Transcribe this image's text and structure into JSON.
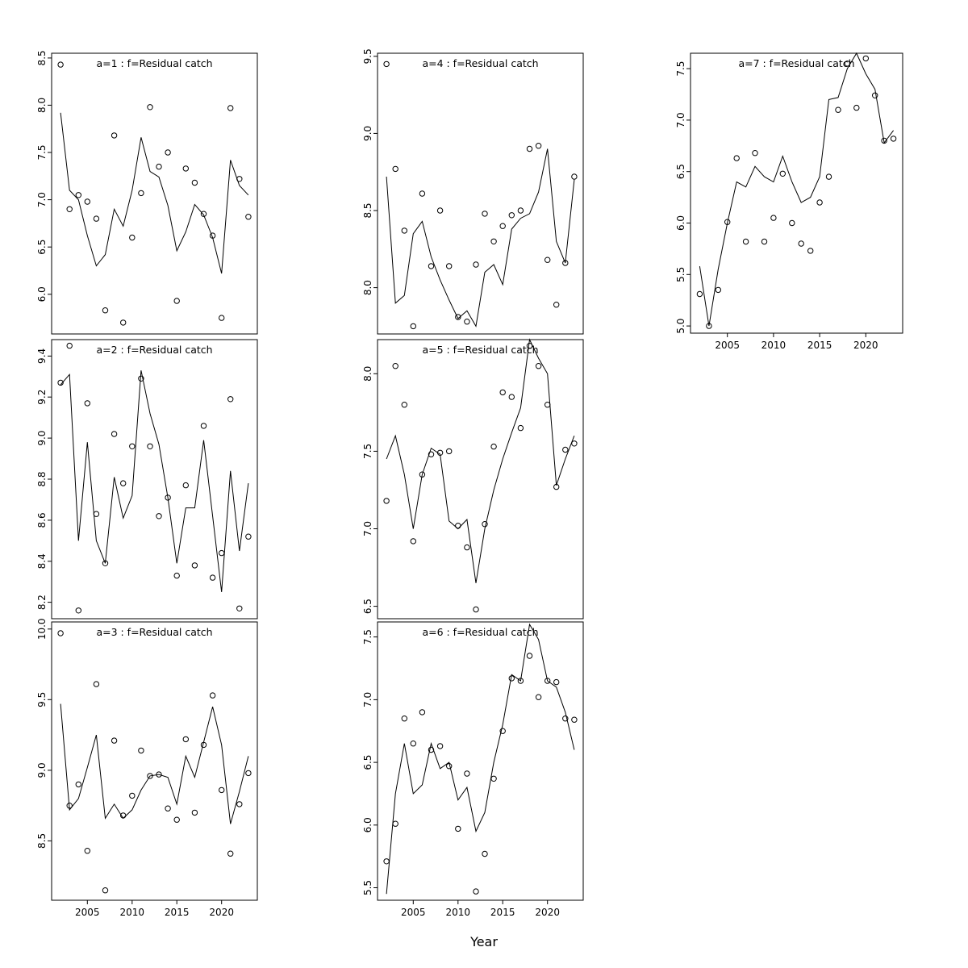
{
  "figure": {
    "xlabel": "Year",
    "background_color": "#ffffff",
    "line_color": "#000000",
    "point_color": "#000000",
    "frame_color": "#000000",
    "title_color": "#808080"
  },
  "chart_data": [
    {
      "type": "line",
      "title": "a=1 : f=Residual catch",
      "x": [
        2002,
        2003,
        2004,
        2005,
        2006,
        2007,
        2008,
        2009,
        2010,
        2011,
        2012,
        2013,
        2014,
        2015,
        2016,
        2017,
        2018,
        2019,
        2020,
        2021,
        2022,
        2023
      ],
      "series": [
        {
          "name": "observed",
          "style": "scatter",
          "values": [
            8.43,
            6.9,
            7.05,
            6.98,
            6.8,
            5.83,
            7.68,
            5.7,
            6.6,
            7.07,
            7.98,
            7.35,
            7.5,
            5.93,
            7.33,
            7.18,
            6.85,
            6.62,
            5.75,
            7.97,
            7.22,
            6.82
          ]
        },
        {
          "name": "fitted",
          "style": "line",
          "values": [
            7.92,
            7.1,
            7.0,
            6.62,
            6.3,
            6.42,
            6.9,
            6.72,
            7.1,
            7.66,
            7.3,
            7.24,
            6.94,
            6.46,
            6.66,
            6.95,
            6.84,
            6.6,
            6.22,
            7.42,
            7.15,
            7.05
          ]
        }
      ],
      "xlim": [
        2001,
        2024
      ],
      "ylim": [
        5.58,
        8.55
      ],
      "yticks": [
        6.0,
        6.5,
        7.0,
        7.5,
        8.0,
        8.5
      ],
      "xticks": [
        2005,
        2010,
        2015,
        2020
      ],
      "show_x_labels": false
    },
    {
      "type": "line",
      "title": "a=2 : f=Residual catch",
      "x": [
        2002,
        2003,
        2004,
        2005,
        2006,
        2007,
        2008,
        2009,
        2010,
        2011,
        2012,
        2013,
        2014,
        2015,
        2016,
        2017,
        2018,
        2019,
        2020,
        2021,
        2022,
        2023
      ],
      "series": [
        {
          "name": "observed",
          "style": "scatter",
          "values": [
            9.27,
            9.45,
            8.16,
            9.17,
            8.63,
            8.39,
            9.02,
            8.78,
            8.96,
            9.29,
            8.96,
            8.62,
            8.71,
            8.33,
            8.77,
            8.38,
            9.06,
            8.32,
            8.44,
            9.19,
            8.17,
            8.52
          ]
        },
        {
          "name": "fitted",
          "style": "line",
          "values": [
            9.26,
            9.31,
            8.5,
            8.98,
            8.5,
            8.39,
            8.81,
            8.61,
            8.72,
            9.33,
            9.12,
            8.97,
            8.71,
            8.39,
            8.66,
            8.66,
            8.99,
            8.62,
            8.25,
            8.84,
            8.45,
            8.78
          ]
        }
      ],
      "xlim": [
        2001,
        2024
      ],
      "ylim": [
        8.12,
        9.48
      ],
      "yticks": [
        8.2,
        8.4,
        8.6,
        8.8,
        9.0,
        9.2,
        9.4
      ],
      "xticks": [
        2005,
        2010,
        2015,
        2020
      ],
      "show_x_labels": false
    },
    {
      "type": "line",
      "title": "a=3 : f=Residual catch",
      "x": [
        2002,
        2003,
        2004,
        2005,
        2006,
        2007,
        2008,
        2009,
        2010,
        2011,
        2012,
        2013,
        2014,
        2015,
        2016,
        2017,
        2018,
        2019,
        2020,
        2021,
        2022,
        2023
      ],
      "series": [
        {
          "name": "observed",
          "style": "scatter",
          "values": [
            9.97,
            8.75,
            8.9,
            8.43,
            9.61,
            8.15,
            9.21,
            8.68,
            8.82,
            9.14,
            8.96,
            8.97,
            8.73,
            8.65,
            9.22,
            8.7,
            9.18,
            9.53,
            8.86,
            8.41,
            8.76,
            8.98
          ]
        },
        {
          "name": "fitted",
          "style": "line",
          "values": [
            9.47,
            8.72,
            8.8,
            9.02,
            9.25,
            8.66,
            8.76,
            8.66,
            8.72,
            8.86,
            8.96,
            8.97,
            8.95,
            8.76,
            9.1,
            8.95,
            9.2,
            9.45,
            9.18,
            8.62,
            8.85,
            9.1
          ]
        }
      ],
      "xlim": [
        2001,
        2024
      ],
      "ylim": [
        8.08,
        10.05
      ],
      "yticks": [
        8.5,
        9.0,
        9.5,
        10.0
      ],
      "xticks": [
        2005,
        2010,
        2015,
        2020
      ],
      "show_x_labels": true
    },
    {
      "type": "line",
      "title": "a=4 : f=Residual catch",
      "x": [
        2002,
        2003,
        2004,
        2005,
        2006,
        2007,
        2008,
        2009,
        2010,
        2011,
        2012,
        2013,
        2014,
        2015,
        2016,
        2017,
        2018,
        2019,
        2020,
        2021,
        2022,
        2023
      ],
      "series": [
        {
          "name": "observed",
          "style": "scatter",
          "values": [
            9.45,
            8.77,
            8.37,
            7.75,
            8.61,
            8.14,
            8.5,
            8.14,
            7.81,
            7.78,
            8.15,
            8.48,
            8.3,
            8.4,
            8.47,
            8.5,
            8.9,
            8.92,
            8.18,
            7.89,
            8.16,
            8.72
          ]
        },
        {
          "name": "fitted",
          "style": "line",
          "values": [
            8.72,
            7.9,
            7.95,
            8.35,
            8.43,
            8.2,
            8.05,
            7.92,
            7.8,
            7.85,
            7.75,
            8.1,
            8.15,
            8.02,
            8.38,
            8.45,
            8.48,
            8.62,
            8.9,
            8.3,
            8.16,
            8.7
          ]
        }
      ],
      "xlim": [
        2001,
        2024
      ],
      "ylim": [
        7.7,
        9.52
      ],
      "yticks": [
        8.0,
        8.5,
        9.0,
        9.5
      ],
      "xticks": [
        2005,
        2010,
        2015,
        2020
      ],
      "show_x_labels": false
    },
    {
      "type": "line",
      "title": "a=5 : f=Residual catch",
      "x": [
        2002,
        2003,
        2004,
        2005,
        2006,
        2007,
        2008,
        2009,
        2010,
        2011,
        2012,
        2013,
        2014,
        2015,
        2016,
        2017,
        2018,
        2019,
        2020,
        2021,
        2022,
        2023
      ],
      "series": [
        {
          "name": "observed",
          "style": "scatter",
          "values": [
            7.18,
            8.05,
            7.8,
            6.92,
            7.35,
            7.48,
            7.49,
            7.5,
            7.02,
            6.88,
            6.48,
            7.03,
            7.53,
            7.88,
            7.85,
            7.65,
            8.18,
            8.05,
            7.8,
            7.27,
            7.51,
            7.55
          ]
        },
        {
          "name": "fitted",
          "style": "line",
          "values": [
            7.45,
            7.6,
            7.35,
            7.0,
            7.35,
            7.52,
            7.48,
            7.05,
            7.0,
            7.06,
            6.65,
            7.0,
            7.25,
            7.45,
            7.62,
            7.78,
            8.22,
            8.1,
            8.0,
            7.28,
            7.45,
            7.6
          ]
        }
      ],
      "xlim": [
        2001,
        2024
      ],
      "ylim": [
        6.42,
        8.22
      ],
      "yticks": [
        6.5,
        7.0,
        7.5,
        8.0
      ],
      "xticks": [
        2005,
        2010,
        2015,
        2020
      ],
      "show_x_labels": false
    },
    {
      "type": "line",
      "title": "a=6 : f=Residual catch",
      "x": [
        2002,
        2003,
        2004,
        2005,
        2006,
        2007,
        2008,
        2009,
        2010,
        2011,
        2012,
        2013,
        2014,
        2015,
        2016,
        2017,
        2018,
        2019,
        2020,
        2021,
        2022,
        2023
      ],
      "series": [
        {
          "name": "observed",
          "style": "scatter",
          "values": [
            5.71,
            6.01,
            6.85,
            6.65,
            6.9,
            6.6,
            6.63,
            6.47,
            5.97,
            6.41,
            5.47,
            5.77,
            6.37,
            6.75,
            7.17,
            7.15,
            7.35,
            7.02,
            7.15,
            7.14,
            6.85,
            6.84
          ]
        },
        {
          "name": "fitted",
          "style": "line",
          "values": [
            5.45,
            6.25,
            6.65,
            6.25,
            6.32,
            6.65,
            6.45,
            6.5,
            6.2,
            6.3,
            5.95,
            6.1,
            6.5,
            6.8,
            7.2,
            7.15,
            7.6,
            7.48,
            7.15,
            7.1,
            6.9,
            6.6
          ]
        }
      ],
      "xlim": [
        2001,
        2024
      ],
      "ylim": [
        5.4,
        7.62
      ],
      "yticks": [
        5.5,
        6.0,
        6.5,
        7.0,
        7.5
      ],
      "xticks": [
        2005,
        2010,
        2015,
        2020
      ],
      "show_x_labels": true
    },
    {
      "type": "line",
      "title": "a=7 : f=Residual catch",
      "x": [
        2002,
        2003,
        2004,
        2005,
        2006,
        2007,
        2008,
        2009,
        2010,
        2011,
        2012,
        2013,
        2014,
        2015,
        2016,
        2017,
        2018,
        2019,
        2020,
        2021,
        2022,
        2023
      ],
      "series": [
        {
          "name": "observed",
          "style": "scatter",
          "values": [
            5.31,
            5.0,
            5.35,
            6.01,
            6.63,
            5.82,
            6.68,
            5.82,
            6.05,
            6.48,
            6.0,
            5.8,
            5.73,
            6.2,
            6.45,
            7.1,
            7.55,
            7.12,
            7.6,
            7.24,
            6.8,
            6.82
          ]
        },
        {
          "name": "fitted",
          "style": "line",
          "values": [
            5.58,
            5.0,
            5.55,
            6.0,
            6.4,
            6.35,
            6.55,
            6.45,
            6.4,
            6.65,
            6.4,
            6.2,
            6.25,
            6.45,
            7.2,
            7.22,
            7.5,
            7.65,
            7.45,
            7.3,
            6.78,
            6.9
          ]
        }
      ],
      "xlim": [
        2001,
        2024
      ],
      "ylim": [
        4.93,
        7.65
      ],
      "yticks": [
        5.0,
        5.5,
        6.0,
        6.5,
        7.0,
        7.5
      ],
      "xticks": [
        2005,
        2010,
        2015,
        2020
      ],
      "show_x_labels": true
    }
  ]
}
